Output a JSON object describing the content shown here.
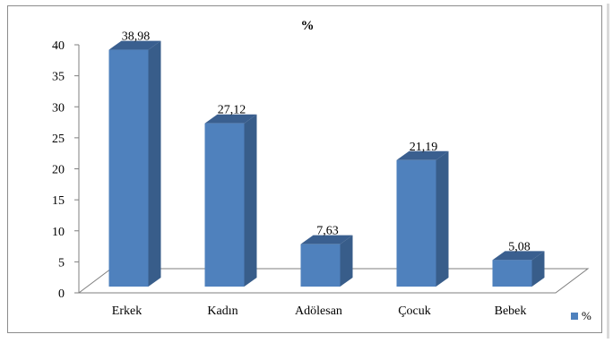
{
  "chart_data": {
    "type": "bar",
    "title": "%",
    "categories": [
      "Erkek",
      "Kadın",
      "Adölesan",
      "Çocuk",
      "Bebek"
    ],
    "series": [
      {
        "name": "%",
        "values": [
          38.98,
          27.12,
          7.63,
          21.19,
          5.08
        ]
      }
    ],
    "data_labels": [
      "38,98",
      "27,12",
      "7,63",
      "21,19",
      "5,08"
    ],
    "y_ticks": [
      "0",
      "5",
      "10",
      "15",
      "20",
      "25",
      "30",
      "35",
      "40"
    ],
    "ylim": [
      0,
      40
    ],
    "xlabel": "",
    "ylabel": "",
    "grid": false,
    "legend_position": "bottom-right",
    "style_3d": true,
    "colors": {
      "bar_front": "#4f81bd",
      "bar_side": "#385d8a",
      "bar_top": "#3a5f8f",
      "floor_line": "#7f7f7f",
      "axis": "#7f7f7f"
    }
  }
}
